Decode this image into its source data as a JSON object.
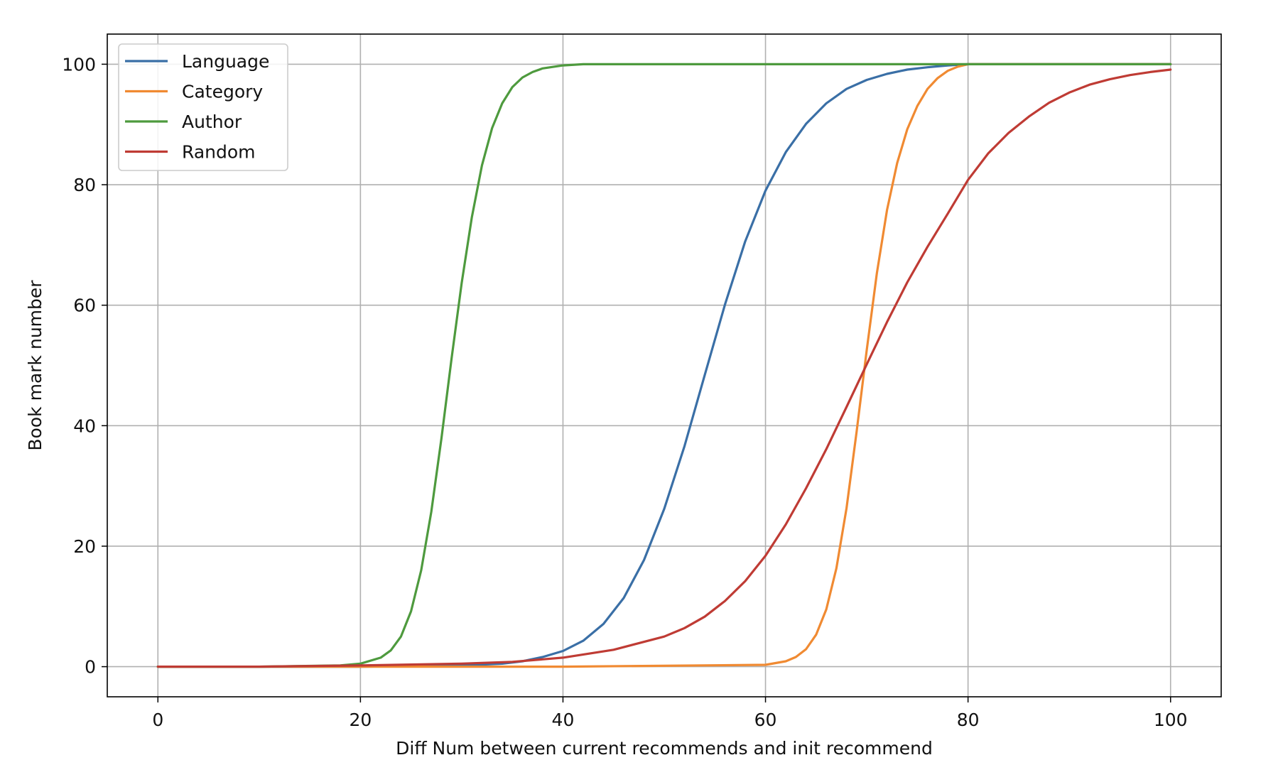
{
  "chart_data": {
    "type": "line",
    "title": "",
    "xlabel": "Diff Num between current recommends and init recommend",
    "ylabel": "Book mark number",
    "xlim": [
      -5,
      105
    ],
    "ylim": [
      -5,
      105
    ],
    "xticks": [
      0,
      20,
      40,
      60,
      80,
      100
    ],
    "yticks": [
      0,
      20,
      40,
      60,
      80,
      100
    ],
    "grid": true,
    "legend_position": "top-left",
    "series": [
      {
        "name": "Language",
        "color": "#3a6fa6",
        "x": [
          0,
          10,
          20,
          30,
          34,
          36,
          38,
          40,
          42,
          44,
          46,
          48,
          50,
          52,
          54,
          56,
          58,
          60,
          62,
          64,
          66,
          68,
          70,
          72,
          74,
          76,
          78,
          80,
          85,
          90,
          95,
          100
        ],
        "y": [
          0,
          0,
          0,
          0.2,
          0.5,
          0.9,
          1.6,
          2.6,
          4.3,
          7.1,
          11.4,
          17.7,
          26.2,
          36.6,
          48.4,
          60.1,
          70.6,
          79.0,
          85.4,
          90.1,
          93.5,
          95.9,
          97.4,
          98.4,
          99.1,
          99.5,
          99.8,
          100,
          100,
          100,
          100,
          100
        ]
      },
      {
        "name": "Category",
        "color": "#f08a32",
        "x": [
          0,
          20,
          40,
          60,
          62,
          63,
          64,
          65,
          66,
          67,
          68,
          69,
          70,
          71,
          72,
          73,
          74,
          75,
          76,
          77,
          78,
          79,
          80,
          85,
          90,
          95,
          100
        ],
        "y": [
          0,
          0,
          0,
          0.3,
          0.9,
          1.6,
          2.9,
          5.3,
          9.5,
          16.3,
          26.3,
          39.0,
          52.6,
          65.3,
          75.8,
          83.6,
          89.2,
          93.1,
          95.9,
          97.7,
          98.9,
          99.6,
          100,
          100,
          100,
          100,
          100
        ]
      },
      {
        "name": "Author",
        "color": "#4e9a3e",
        "x": [
          0,
          10,
          18,
          20,
          22,
          23,
          24,
          25,
          26,
          27,
          28,
          29,
          30,
          31,
          32,
          33,
          34,
          35,
          36,
          37,
          38,
          40,
          42,
          45,
          50,
          60,
          70,
          80,
          90,
          100
        ],
        "y": [
          0,
          0,
          0.2,
          0.5,
          1.5,
          2.7,
          5.0,
          9.2,
          16.0,
          25.7,
          37.9,
          51.2,
          63.7,
          74.6,
          83.2,
          89.4,
          93.5,
          96.2,
          97.8,
          98.7,
          99.3,
          99.8,
          100,
          100,
          100,
          100,
          100,
          100,
          100,
          100
        ]
      },
      {
        "name": "Random",
        "color": "#bf3b34",
        "x": [
          0,
          10,
          20,
          30,
          35,
          40,
          45,
          50,
          52,
          54,
          56,
          58,
          60,
          62,
          64,
          66,
          68,
          70,
          72,
          74,
          76,
          78,
          80,
          82,
          84,
          86,
          88,
          90,
          92,
          94,
          96,
          98,
          100
        ],
        "y": [
          0,
          0,
          0.2,
          0.5,
          0.8,
          1.5,
          2.8,
          5.0,
          6.4,
          8.3,
          10.9,
          14.2,
          18.4,
          23.6,
          29.6,
          36.1,
          43.1,
          50.2,
          57.2,
          63.8,
          69.7,
          75.2,
          80.8,
          85.2,
          88.6,
          91.3,
          93.6,
          95.3,
          96.6,
          97.5,
          98.2,
          98.7,
          99.1
        ]
      }
    ]
  }
}
